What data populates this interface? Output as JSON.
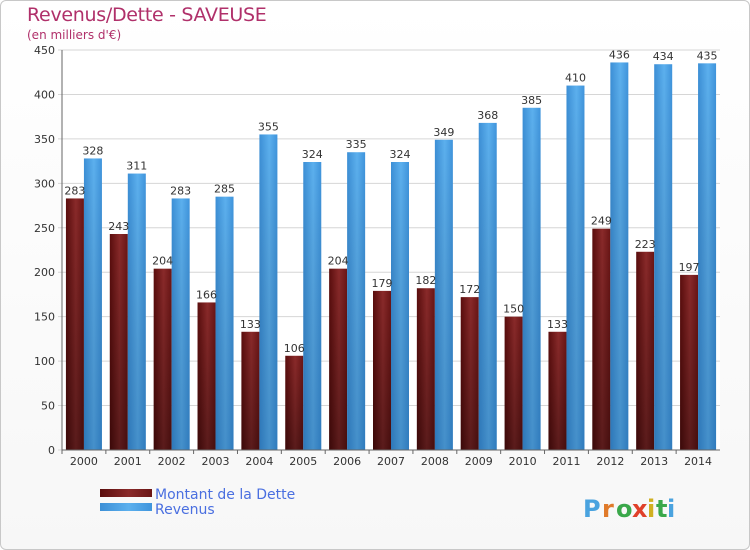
{
  "title": "Revenus/Dette - SAVEUSE",
  "subtitle": "(en milliers d'€)",
  "watermark": "Proxiti",
  "chart_data": {
    "type": "bar",
    "categories": [
      "2000",
      "2001",
      "2002",
      "2003",
      "2004",
      "2005",
      "2006",
      "2007",
      "2008",
      "2009",
      "2010",
      "2011",
      "2012",
      "2013",
      "2014"
    ],
    "series": [
      {
        "name": "Montant de la Dette",
        "color": "#7a1a1a",
        "values": [
          283,
          243,
          204,
          166,
          133,
          106,
          204,
          179,
          182,
          172,
          150,
          133,
          249,
          223,
          197
        ]
      },
      {
        "name": "Revenus",
        "color": "#4ea3e6",
        "values": [
          328,
          311,
          283,
          285,
          355,
          324,
          335,
          324,
          349,
          368,
          385,
          410,
          436,
          434,
          435
        ]
      }
    ],
    "ylim": [
      0,
      450
    ],
    "yticks": [
      0,
      50,
      100,
      150,
      200,
      250,
      300,
      350,
      400,
      450
    ],
    "grid": true,
    "legend": "bottom-left"
  }
}
